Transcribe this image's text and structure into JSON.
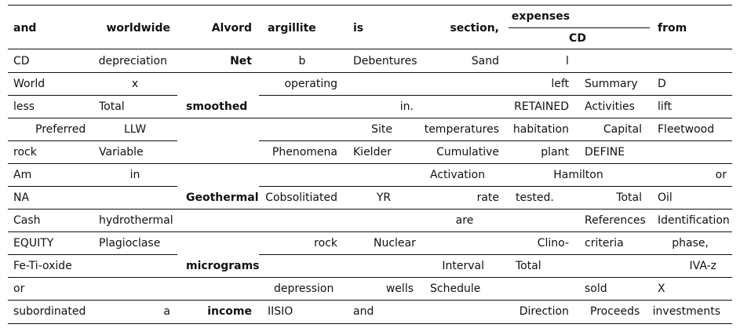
{
  "header": {
    "c0": "and",
    "c1": "worldwide",
    "c2": "Alvord",
    "c3": "argillite",
    "c4": "is",
    "c5": "section,",
    "c6_top": "expenses",
    "c6_bottom": "CD",
    "c8": "from"
  },
  "rows": [
    [
      "CD",
      "depreciation",
      "Net",
      "b",
      "Debentures",
      "Sand",
      "l",
      "",
      "",
      ""
    ],
    [
      "World",
      "x",
      "",
      "operating",
      "",
      "",
      "left",
      "Summary",
      "D",
      ""
    ],
    [
      "less",
      "Total",
      "smoothed",
      "",
      "in.",
      "",
      "RETAINED",
      "Activities",
      "lift",
      ""
    ],
    [
      "Preferred",
      "LLW",
      "",
      "",
      "Site",
      "temperatures",
      "habitation",
      "Capital",
      "Fleetwood",
      ""
    ],
    [
      "rock",
      "Variable",
      "",
      "Phenomena",
      "Kielder",
      "Cumulative",
      "plant",
      "DEFINE",
      "",
      ""
    ],
    [
      "Am",
      "in",
      "",
      "",
      "",
      "Activation",
      "Hamilton",
      "",
      "or",
      ""
    ],
    [
      "NA",
      "",
      "Geothermal",
      "Cobsolitiated",
      "YR",
      "rate",
      "tested.",
      "Total",
      "Oil",
      ""
    ],
    [
      "Cash",
      "hydrothermal",
      "",
      "",
      "",
      "are",
      "",
      "References",
      "Identification",
      ""
    ],
    [
      "EQUITY",
      "Plagioclase",
      "",
      "rock",
      "Nuclear",
      "",
      "Clino-",
      "criteria",
      "phase,",
      ""
    ],
    [
      "Fe-Ti-oxide",
      "",
      "micrograms",
      "",
      "",
      "Interval",
      "Total",
      "",
      "IVA-z",
      ""
    ],
    [
      "or",
      "",
      "",
      "depression",
      "wells",
      "Schedule",
      "",
      "sold",
      "X",
      ""
    ],
    [
      "subordinated",
      "a",
      "income",
      "IISIO",
      "and",
      "",
      "Direction",
      "Proceeds",
      "investments",
      ""
    ]
  ]
}
